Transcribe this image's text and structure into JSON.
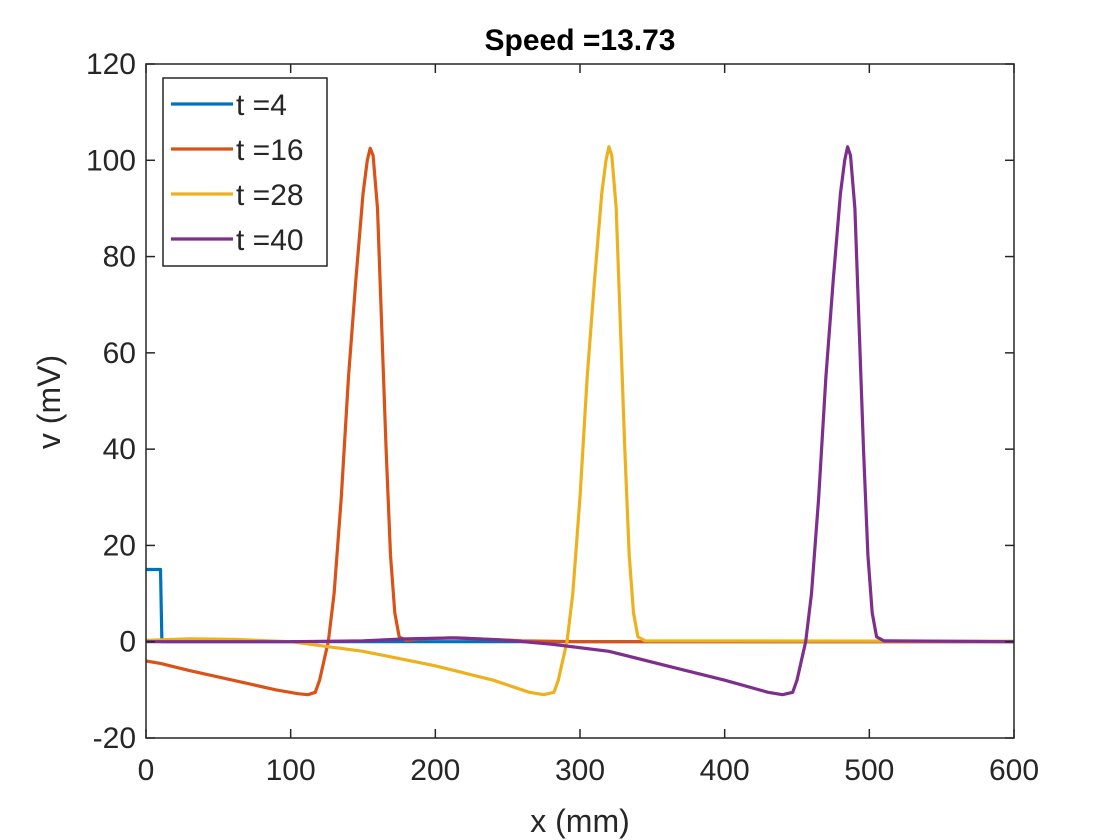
{
  "chart_data": {
    "type": "line",
    "title": "Speed =13.73",
    "xlabel": "x (mm)",
    "ylabel": "v (mV)",
    "xlim": [
      0,
      600
    ],
    "ylim": [
      -20,
      120
    ],
    "xticks": [
      0,
      100,
      200,
      300,
      400,
      500,
      600
    ],
    "yticks": [
      -20,
      0,
      20,
      40,
      60,
      80,
      100,
      120
    ],
    "grid": false,
    "legend_position": "top-left",
    "series": [
      {
        "name": "t =4",
        "color": "#0072BD",
        "points": [
          [
            0,
            15
          ],
          [
            10,
            15
          ],
          [
            11,
            0
          ],
          [
            600,
            0
          ]
        ]
      },
      {
        "name": "t =16",
        "color": "#D95319",
        "points": [
          [
            0,
            -4
          ],
          [
            10,
            -4.5
          ],
          [
            30,
            -6
          ],
          [
            60,
            -8
          ],
          [
            90,
            -10
          ],
          [
            105,
            -10.8
          ],
          [
            112,
            -11
          ],
          [
            117,
            -10.5
          ],
          [
            120,
            -8
          ],
          [
            123,
            -4
          ],
          [
            126,
            0
          ],
          [
            130,
            10
          ],
          [
            135,
            30
          ],
          [
            140,
            55
          ],
          [
            145,
            75
          ],
          [
            150,
            93
          ],
          [
            153,
            100
          ],
          [
            155,
            102.5
          ],
          [
            157,
            101
          ],
          [
            160,
            90
          ],
          [
            163,
            65
          ],
          [
            166,
            40
          ],
          [
            169,
            18
          ],
          [
            172,
            6
          ],
          [
            175,
            1
          ],
          [
            180,
            0.3
          ],
          [
            190,
            0.6
          ],
          [
            210,
            0.8
          ],
          [
            230,
            0.6
          ],
          [
            260,
            0.2
          ],
          [
            300,
            0
          ],
          [
            600,
            0
          ]
        ]
      },
      {
        "name": "t =28",
        "color": "#EDB120",
        "points": [
          [
            0,
            0.3
          ],
          [
            30,
            0.6
          ],
          [
            60,
            0.5
          ],
          [
            100,
            0
          ],
          [
            150,
            -2
          ],
          [
            200,
            -5
          ],
          [
            240,
            -8
          ],
          [
            265,
            -10.5
          ],
          [
            275,
            -11
          ],
          [
            282,
            -10.5
          ],
          [
            285,
            -8
          ],
          [
            288,
            -4
          ],
          [
            291,
            0
          ],
          [
            295,
            10
          ],
          [
            300,
            30
          ],
          [
            305,
            55
          ],
          [
            310,
            75
          ],
          [
            315,
            93
          ],
          [
            318,
            100
          ],
          [
            320,
            102.8
          ],
          [
            322,
            101
          ],
          [
            325,
            90
          ],
          [
            328,
            65
          ],
          [
            331,
            40
          ],
          [
            334,
            18
          ],
          [
            337,
            6
          ],
          [
            340,
            1
          ],
          [
            345,
            0.2
          ],
          [
            600,
            0.1
          ]
        ]
      },
      {
        "name": "t =40",
        "color": "#7E2F8E",
        "points": [
          [
            0,
            0
          ],
          [
            100,
            0
          ],
          [
            150,
            0.2
          ],
          [
            180,
            0.6
          ],
          [
            215,
            0.8
          ],
          [
            250,
            0.3
          ],
          [
            280,
            -0.5
          ],
          [
            320,
            -2
          ],
          [
            360,
            -5
          ],
          [
            400,
            -8
          ],
          [
            430,
            -10.5
          ],
          [
            440,
            -11
          ],
          [
            447,
            -10.5
          ],
          [
            450,
            -8
          ],
          [
            453,
            -4
          ],
          [
            456,
            0
          ],
          [
            460,
            10
          ],
          [
            465,
            30
          ],
          [
            470,
            55
          ],
          [
            475,
            75
          ],
          [
            480,
            93
          ],
          [
            483,
            100
          ],
          [
            485,
            102.8
          ],
          [
            487,
            101
          ],
          [
            490,
            90
          ],
          [
            493,
            65
          ],
          [
            496,
            40
          ],
          [
            499,
            18
          ],
          [
            502,
            6
          ],
          [
            505,
            1
          ],
          [
            510,
            0.2
          ],
          [
            600,
            0
          ]
        ]
      }
    ]
  }
}
